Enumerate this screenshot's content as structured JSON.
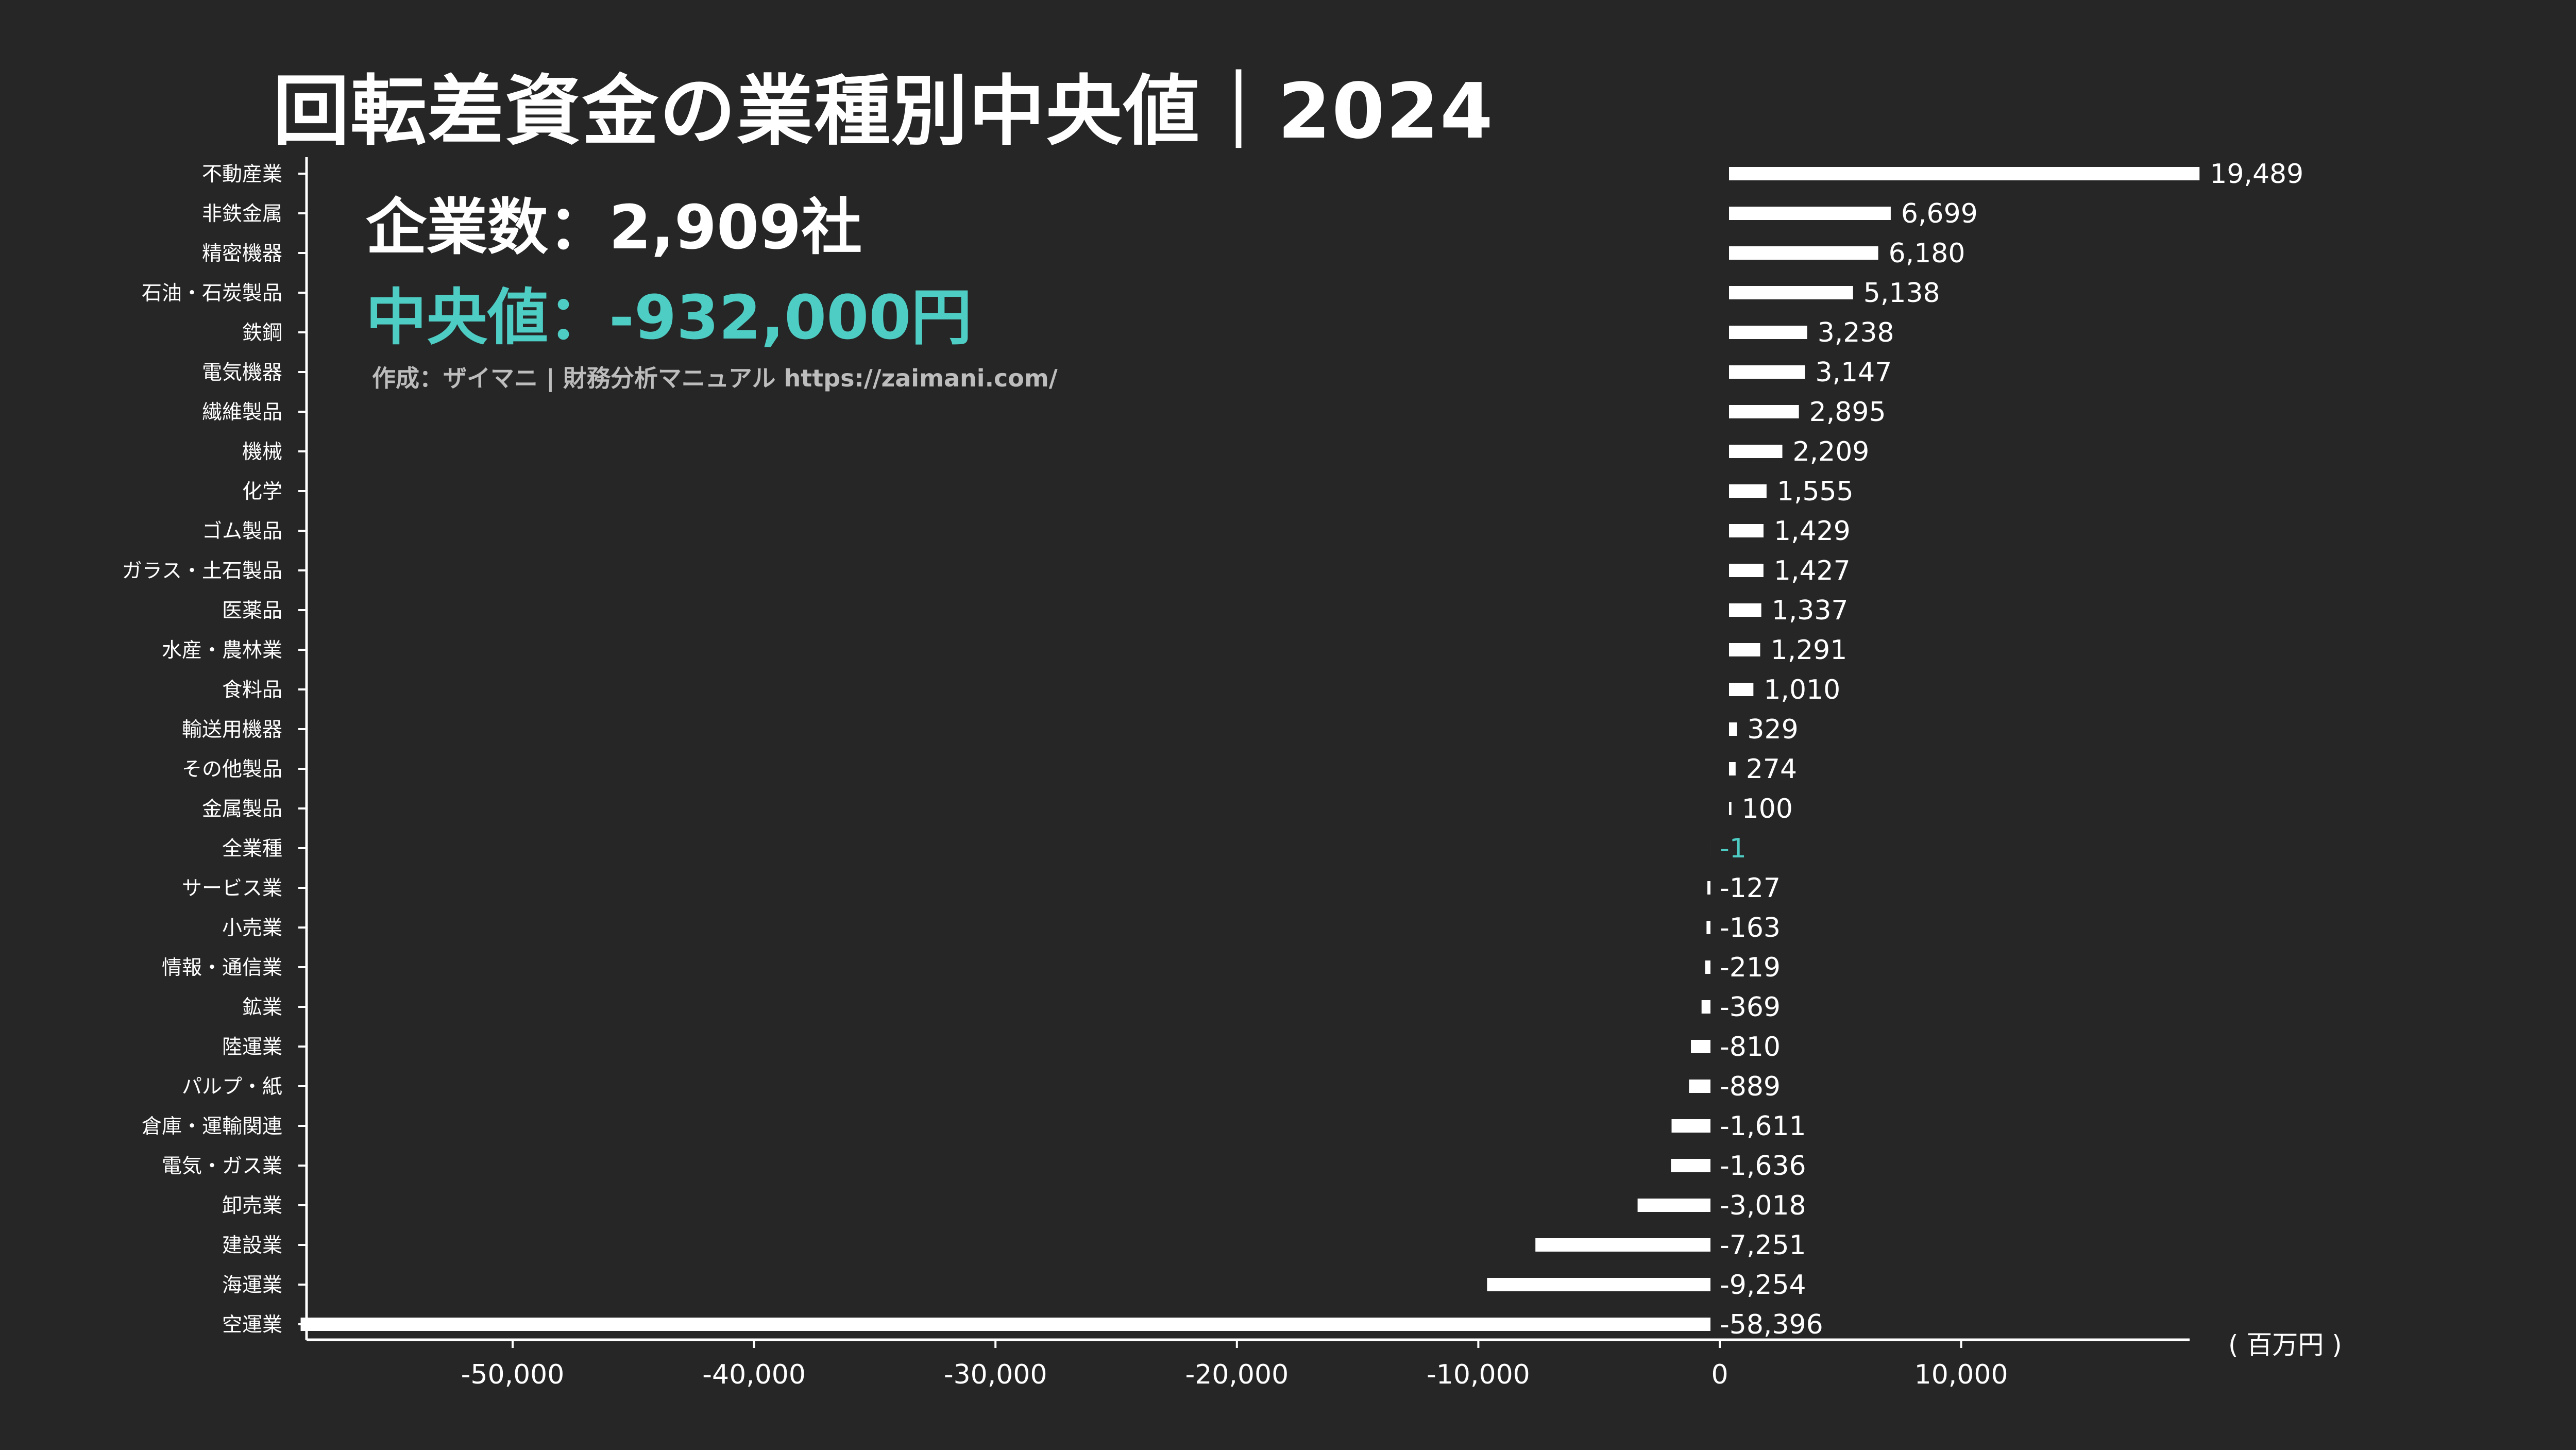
{
  "title": "回転差資金の業種別中央値｜2024",
  "summary": {
    "company_count": "企業数：2,909社",
    "median": "中央値：-932,000円",
    "credit": "作成：ザイマニ | 財務分析マニュアル https://zaimani.com/"
  },
  "unit": "( 百万円 )",
  "colors": {
    "background": "#262626",
    "bar": "#ffffff",
    "highlight": "#4ecdc4",
    "text": "#ffffff"
  },
  "chart_data": {
    "type": "bar",
    "orientation": "horizontal",
    "categories": [
      "不動産業",
      "非鉄金属",
      "精密機器",
      "石油・石炭製品",
      "鉄鋼",
      "電気機器",
      "繊維製品",
      "機械",
      "化学",
      "ゴム製品",
      "ガラス・土石製品",
      "医薬品",
      "水産・農林業",
      "食料品",
      "輸送用機器",
      "その他製品",
      "金属製品",
      "全業種",
      "サービス業",
      "小売業",
      "情報・通信業",
      "鉱業",
      "陸運業",
      "パルプ・紙",
      "倉庫・運輸関連",
      "電気・ガス業",
      "卸売業",
      "建設業",
      "海運業",
      "空運業"
    ],
    "values": [
      19489,
      6699,
      6180,
      5138,
      3238,
      3147,
      2895,
      2209,
      1555,
      1429,
      1427,
      1337,
      1291,
      1010,
      329,
      274,
      100,
      -1,
      -127,
      -163,
      -219,
      -369,
      -810,
      -889,
      -1611,
      -1636,
      -3018,
      -7251,
      -9254,
      -58396
    ],
    "value_labels": [
      "19,489",
      "6,699",
      "6,180",
      "5,138",
      "3,238",
      "3,147",
      "2,895",
      "2,209",
      "1,555",
      "1,429",
      "1,427",
      "1,337",
      "1,291",
      "1,010",
      "329",
      "274",
      "100",
      "-1",
      "-127",
      "-163",
      "-219",
      "-369",
      "-810",
      "-889",
      "-1,611",
      "-1,636",
      "-3,018",
      "-7,251",
      "-9,254",
      "-58,396"
    ],
    "highlight_category": "全業種",
    "xlim": [
      -58396,
      19489
    ],
    "xticks": [
      -50000,
      -40000,
      -30000,
      -20000,
      -10000,
      0,
      10000
    ],
    "xtick_labels": [
      "-50,000",
      "-40,000",
      "-30,000",
      "-20,000",
      "-10,000",
      "0",
      "10,000"
    ],
    "xlabel": "",
    "ylabel": ""
  }
}
